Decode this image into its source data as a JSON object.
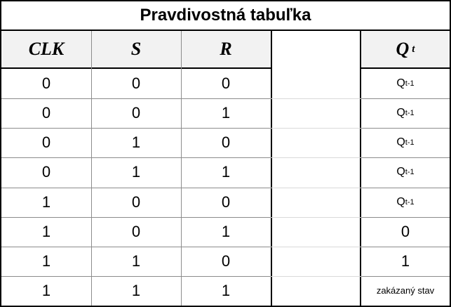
{
  "table": {
    "title": "Pravdivostná tabuľka",
    "headers": {
      "clk": "CLK",
      "s": "S",
      "r": "R",
      "q_main": "Q",
      "q_sub": "t"
    },
    "q_prev": {
      "main": "Q",
      "sub": "t-1"
    },
    "rows": [
      {
        "clk": "0",
        "s": "0",
        "r": "0",
        "q": "prev"
      },
      {
        "clk": "0",
        "s": "0",
        "r": "1",
        "q": "prev"
      },
      {
        "clk": "0",
        "s": "1",
        "r": "0",
        "q": "prev"
      },
      {
        "clk": "0",
        "s": "1",
        "r": "1",
        "q": "prev"
      },
      {
        "clk": "1",
        "s": "0",
        "r": "0",
        "q": "prev"
      },
      {
        "clk": "1",
        "s": "0",
        "r": "1",
        "q": "0"
      },
      {
        "clk": "1",
        "s": "1",
        "r": "0",
        "q": "1"
      },
      {
        "clk": "1",
        "s": "1",
        "r": "1",
        "q": "zakázaný stav"
      }
    ]
  }
}
